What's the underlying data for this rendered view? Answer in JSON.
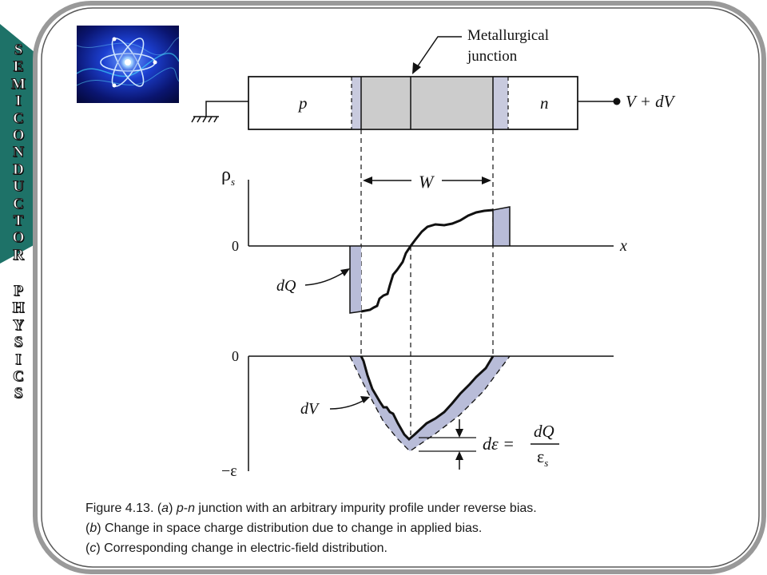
{
  "side_title": {
    "word1": [
      "S",
      "E",
      "M",
      "I",
      "C",
      "O",
      "N",
      "D",
      "U",
      "C",
      "T",
      "O",
      "R"
    ],
    "word2": [
      "P",
      "H",
      "Y",
      "S",
      "I",
      "C",
      "S"
    ]
  },
  "logo": {
    "icon": "atom-icon"
  },
  "diagram": {
    "metallurgical_label_line1": "Metallurgical",
    "metallurgical_label_line2": "junction",
    "p_label": "p",
    "n_label": "n",
    "bias_label": "V + dV",
    "rho_label": "ρ",
    "rho_sub": "s",
    "width_label": "W",
    "zero_label_top": "0",
    "x_label": "x",
    "dq_label": "dQ",
    "zero_label_bottom": "0",
    "dv_label": "dV",
    "neg_eps_label": "−ε",
    "formula_lhs": "dε =",
    "formula_num": "dQ",
    "formula_den": "ε",
    "formula_den_sub": "s"
  },
  "caption": {
    "line1": {
      "prefix": "Figure 4.13.  (",
      "a": "a",
      "mid1": ") ",
      "p": "p",
      "dash": "-",
      "n": "n",
      "rest": " junction with an arbitrary impurity profile under reverse bias."
    },
    "line2": {
      "open": "(",
      "b": "b",
      "rest": ") Change in space charge distribution due to change in applied bias."
    },
    "line3": {
      "open": "(",
      "c": "c",
      "rest": ") Corresponding change in electric-field distribution."
    }
  },
  "colors": {
    "teal_band": "#1e7268",
    "frame_stroke": "#888888",
    "depletion_fill": "#cccccc",
    "delta_fill": "#b8bcd8",
    "line": "#111111"
  }
}
